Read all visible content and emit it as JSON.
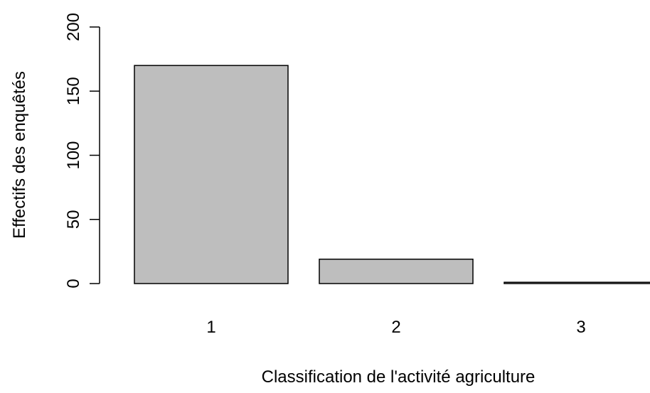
{
  "chart_data": {
    "type": "bar",
    "categories": [
      "1",
      "2",
      "3"
    ],
    "values": [
      170,
      19,
      1
    ],
    "title": "",
    "xlabel": "Classification de l'activité agriculture",
    "ylabel": "Effectifs des enquêtés",
    "ylim": [
      0,
      200
    ],
    "yticks": [
      0,
      50,
      100,
      150,
      200
    ],
    "grid": false,
    "colors": {
      "bar_fill": "#bebebe",
      "bar_stroke": "#000000",
      "axis": "#000000",
      "background": "#ffffff"
    }
  }
}
